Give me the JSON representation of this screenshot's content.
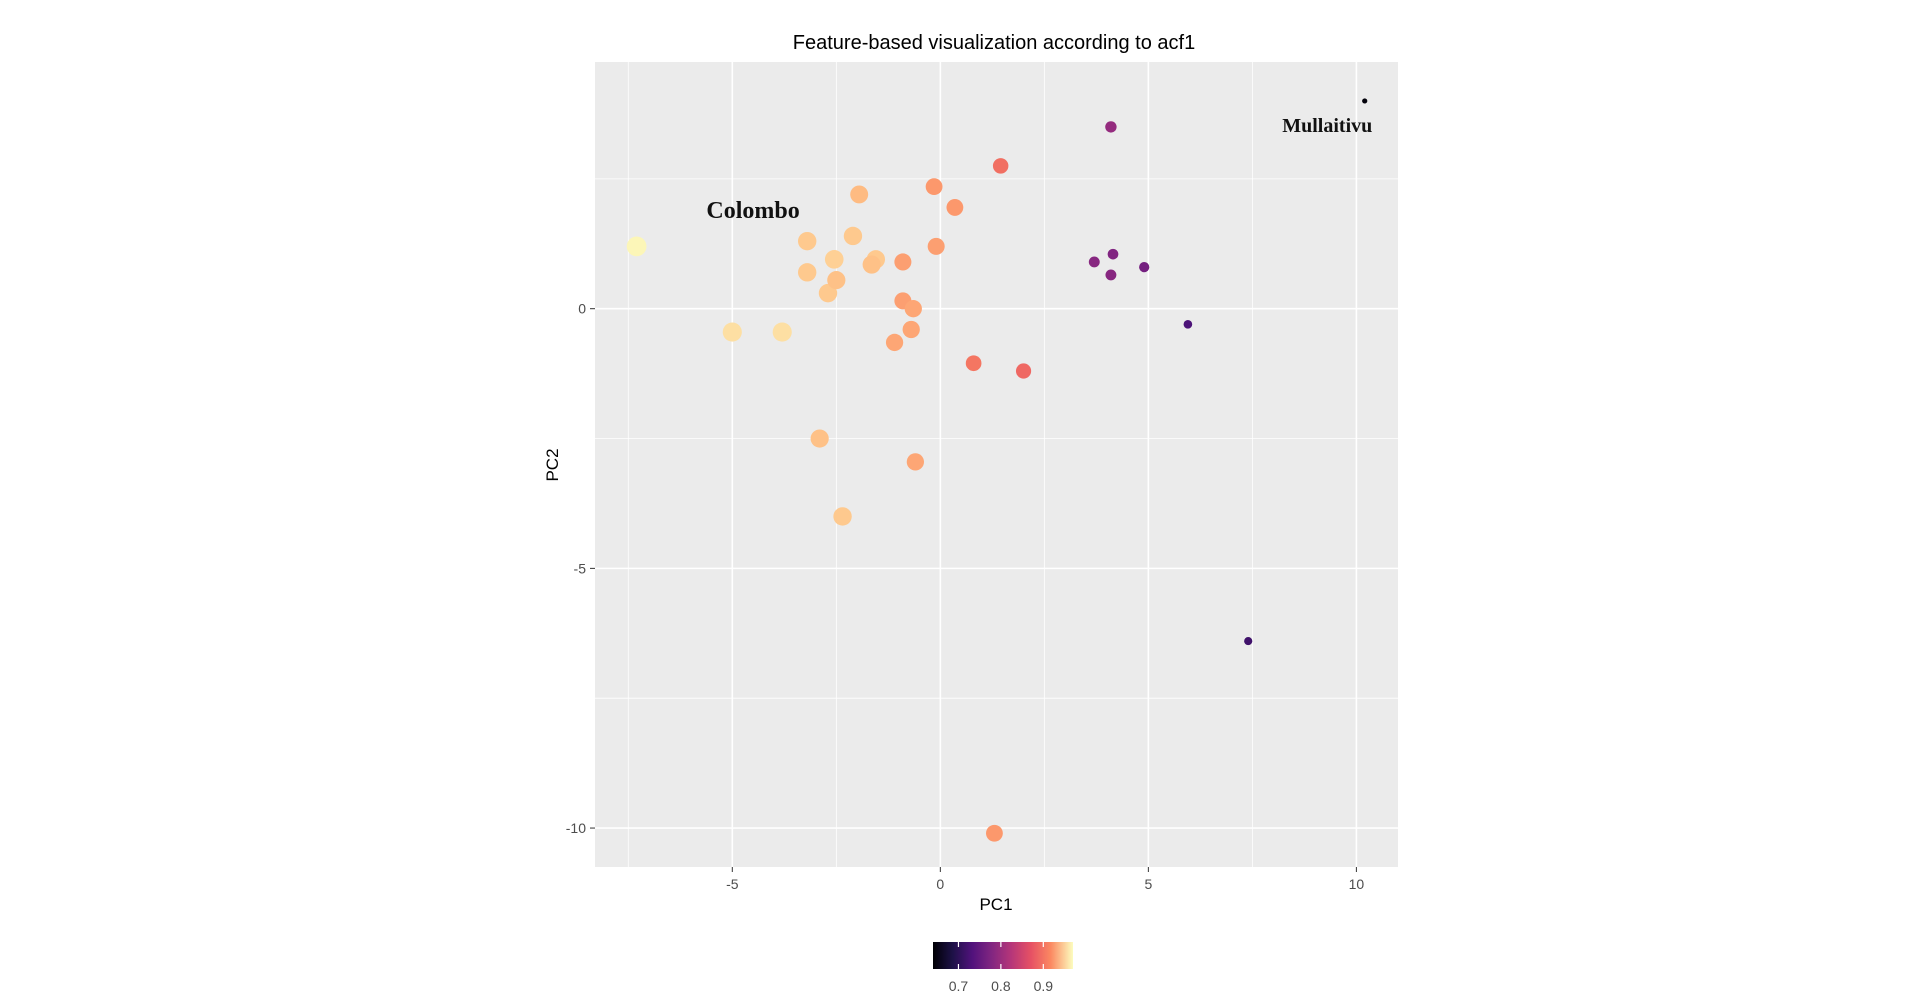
{
  "chart_data": {
    "type": "scatter",
    "title": "Feature-based visualization according to acf1",
    "xlabel": "PC1",
    "ylabel": "PC2",
    "xlim": [
      -8.3,
      11
    ],
    "ylim": [
      -10.75,
      4.75
    ],
    "x_ticks": [
      -5,
      0,
      5,
      10
    ],
    "x_tick_labels": [
      "-5",
      "0",
      "5",
      "10"
    ],
    "y_ticks": [
      -10,
      -5,
      0
    ],
    "y_tick_labels": [
      "-10",
      "-5",
      "0"
    ],
    "grid": true,
    "panel_background": "#ebebeb",
    "gridline_color": "#ffffff",
    "color_scale": {
      "name": "magma",
      "domain": [
        0.64,
        0.97
      ],
      "ticks": [
        0.7,
        0.8,
        0.9
      ],
      "tick_labels": [
        "0.7",
        "0.8",
        "0.9"
      ],
      "legend_position": "bottom"
    },
    "points": [
      {
        "x": -7.3,
        "y": 1.2,
        "acf1": 0.965
      },
      {
        "x": -5.0,
        "y": -0.45,
        "acf1": 0.95
      },
      {
        "x": -3.8,
        "y": -0.45,
        "acf1": 0.95
      },
      {
        "x": -3.2,
        "y": 1.3,
        "acf1": 0.935
      },
      {
        "x": -3.2,
        "y": 0.7,
        "acf1": 0.935
      },
      {
        "x": -2.55,
        "y": 0.95,
        "acf1": 0.94
      },
      {
        "x": -2.7,
        "y": 0.3,
        "acf1": 0.935
      },
      {
        "x": -2.5,
        "y": 0.55,
        "acf1": 0.93
      },
      {
        "x": -2.1,
        "y": 1.4,
        "acf1": 0.935
      },
      {
        "x": -1.95,
        "y": 2.2,
        "acf1": 0.925
      },
      {
        "x": -1.55,
        "y": 0.95,
        "acf1": 0.935
      },
      {
        "x": -1.65,
        "y": 0.85,
        "acf1": 0.93
      },
      {
        "x": -0.9,
        "y": 0.9,
        "acf1": 0.905
      },
      {
        "x": -0.9,
        "y": 0.15,
        "acf1": 0.905
      },
      {
        "x": -0.65,
        "y": 0.0,
        "acf1": 0.91
      },
      {
        "x": -0.7,
        "y": -0.4,
        "acf1": 0.91
      },
      {
        "x": -1.1,
        "y": -0.65,
        "acf1": 0.91
      },
      {
        "x": -0.15,
        "y": 2.35,
        "acf1": 0.9
      },
      {
        "x": -0.1,
        "y": 1.2,
        "acf1": 0.905
      },
      {
        "x": 0.35,
        "y": 1.95,
        "acf1": 0.9
      },
      {
        "x": 1.45,
        "y": 2.75,
        "acf1": 0.87
      },
      {
        "x": 0.8,
        "y": -1.05,
        "acf1": 0.875
      },
      {
        "x": 2.0,
        "y": -1.2,
        "acf1": 0.865
      },
      {
        "x": -2.9,
        "y": -2.5,
        "acf1": 0.93
      },
      {
        "x": -0.6,
        "y": -2.95,
        "acf1": 0.91
      },
      {
        "x": -2.35,
        "y": -4.0,
        "acf1": 0.935
      },
      {
        "x": 1.3,
        "y": -10.1,
        "acf1": 0.9
      },
      {
        "x": 4.1,
        "y": 3.5,
        "acf1": 0.78
      },
      {
        "x": 3.7,
        "y": 0.9,
        "acf1": 0.77
      },
      {
        "x": 4.15,
        "y": 1.05,
        "acf1": 0.765
      },
      {
        "x": 4.1,
        "y": 0.65,
        "acf1": 0.77
      },
      {
        "x": 4.9,
        "y": 0.8,
        "acf1": 0.755
      },
      {
        "x": 5.95,
        "y": -0.3,
        "acf1": 0.72
      },
      {
        "x": 7.4,
        "y": -6.4,
        "acf1": 0.71
      },
      {
        "x": 10.2,
        "y": 4.0,
        "acf1": 0.645
      }
    ],
    "annotations": [
      {
        "text": "Colombo",
        "x": -4.5,
        "y": 1.75
      },
      {
        "text": "Mullaitivu",
        "x": 9.3,
        "y": 3.4
      }
    ]
  }
}
